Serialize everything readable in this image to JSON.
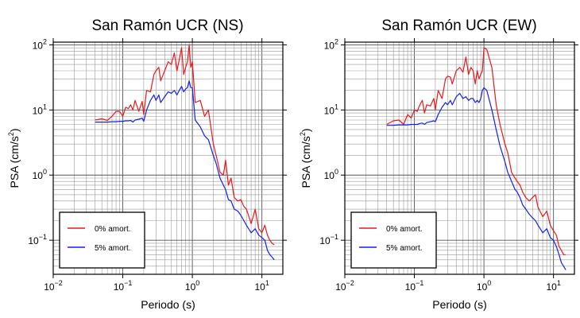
{
  "chart_data": [
    {
      "type": "line",
      "title": "San Ramón UCR (NS)",
      "xlabel": "Periodo (s)",
      "ylabel": {
        "prefix": "PSA (cm/s",
        "sup": "2",
        "suffix": ")"
      },
      "xscale": "log",
      "yscale": "log",
      "xlim": [
        0.01,
        20
      ],
      "ylim": [
        0.03,
        110
      ],
      "grid": true,
      "legend_position": "bottom-left",
      "x_ticks": [
        {
          "base": "10",
          "exp": "−2",
          "value": 0.01
        },
        {
          "base": "10",
          "exp": "−1",
          "value": 0.1
        },
        {
          "base": "10",
          "exp": "0",
          "value": 1
        },
        {
          "base": "10",
          "exp": "1",
          "value": 10
        }
      ],
      "y_ticks": [
        {
          "base": "10",
          "exp": "−1",
          "value": 0.1
        },
        {
          "base": "10",
          "exp": "0",
          "value": 1
        },
        {
          "base": "10",
          "exp": "1",
          "value": 10
        },
        {
          "base": "10",
          "exp": "2",
          "value": 100
        }
      ],
      "series": [
        {
          "name": "0% amort.",
          "color": "#e8191c",
          "x": [
            0.04,
            0.05,
            0.06,
            0.07,
            0.08,
            0.09,
            0.1,
            0.11,
            0.12,
            0.13,
            0.14,
            0.15,
            0.17,
            0.19,
            0.2,
            0.22,
            0.25,
            0.28,
            0.3,
            0.33,
            0.35,
            0.4,
            0.45,
            0.5,
            0.55,
            0.6,
            0.65,
            0.7,
            0.75,
            0.8,
            0.85,
            0.9,
            0.95,
            1.0,
            1.1,
            1.3,
            1.5,
            1.7,
            2.0,
            2.2,
            2.5,
            2.8,
            3.0,
            3.3,
            3.6,
            4.0,
            4.5,
            5.0,
            5.5,
            6.0,
            7.0,
            8.0,
            9.0,
            10.0,
            11.0,
            12.0,
            13.0,
            14.0,
            15.0
          ],
          "y": [
            7.0,
            7.3,
            6.9,
            8.0,
            9.5,
            9.5,
            8.0,
            11.0,
            10.5,
            12.0,
            10.0,
            14.0,
            9.5,
            13.5,
            8.5,
            20.0,
            19.0,
            35.0,
            40.0,
            45.0,
            28.0,
            40.0,
            55.0,
            50.0,
            75.0,
            40.0,
            60.0,
            90.0,
            35.0,
            45.0,
            55.0,
            100.0,
            45.0,
            55.0,
            13.0,
            14.0,
            8.0,
            10.0,
            3.0,
            2.0,
            1.1,
            1.0,
            1.7,
            0.7,
            0.9,
            0.45,
            0.4,
            0.42,
            0.33,
            0.3,
            0.18,
            0.3,
            0.15,
            0.13,
            0.17,
            0.12,
            0.1,
            0.09,
            0.085
          ]
        },
        {
          "name": "5% amort.",
          "color": "#1520e6",
          "x": [
            0.04,
            0.05,
            0.06,
            0.07,
            0.08,
            0.09,
            0.1,
            0.11,
            0.12,
            0.13,
            0.14,
            0.15,
            0.17,
            0.19,
            0.2,
            0.22,
            0.25,
            0.28,
            0.3,
            0.33,
            0.35,
            0.4,
            0.45,
            0.5,
            0.55,
            0.6,
            0.65,
            0.7,
            0.75,
            0.8,
            0.85,
            0.9,
            0.95,
            1.0,
            1.1,
            1.3,
            1.5,
            1.7,
            2.0,
            2.2,
            2.5,
            2.8,
            3.0,
            3.3,
            3.6,
            4.0,
            4.5,
            5.0,
            5.5,
            6.0,
            7.0,
            8.0,
            9.0,
            10.0,
            11.0,
            12.0,
            13.0,
            14.0,
            15.0
          ],
          "y": [
            6.5,
            6.5,
            6.5,
            6.6,
            6.6,
            6.7,
            6.7,
            6.8,
            6.8,
            6.9,
            6.5,
            7.0,
            7.2,
            7.5,
            6.7,
            10.0,
            14.0,
            17.0,
            14.0,
            17.0,
            13.0,
            16.0,
            19.0,
            18.0,
            20.0,
            17.0,
            20.0,
            23.0,
            19.0,
            21.0,
            22.0,
            28.0,
            22.0,
            22.0,
            7.0,
            5.5,
            4.0,
            3.5,
            2.0,
            1.5,
            0.9,
            0.7,
            0.6,
            0.42,
            0.4,
            0.3,
            0.28,
            0.24,
            0.2,
            0.17,
            0.13,
            0.15,
            0.12,
            0.11,
            0.1,
            0.07,
            0.06,
            0.055,
            0.05
          ]
        }
      ]
    },
    {
      "type": "line",
      "title": "San Ramón UCR (EW)",
      "xlabel": "Periodo (s)",
      "ylabel": {
        "prefix": "PSA (cm/s",
        "sup": "2",
        "suffix": ")"
      },
      "xscale": "log",
      "yscale": "log",
      "xlim": [
        0.01,
        20
      ],
      "ylim": [
        0.03,
        110
      ],
      "grid": true,
      "legend_position": "bottom-left",
      "x_ticks": [
        {
          "base": "10",
          "exp": "−2",
          "value": 0.01
        },
        {
          "base": "10",
          "exp": "−1",
          "value": 0.1
        },
        {
          "base": "10",
          "exp": "0",
          "value": 1
        },
        {
          "base": "10",
          "exp": "1",
          "value": 10
        }
      ],
      "y_ticks": [
        {
          "base": "10",
          "exp": "−1",
          "value": 0.1
        },
        {
          "base": "10",
          "exp": "0",
          "value": 1
        },
        {
          "base": "10",
          "exp": "1",
          "value": 10
        },
        {
          "base": "10",
          "exp": "2",
          "value": 100
        }
      ],
      "series": [
        {
          "name": "0% amort.",
          "color": "#e8191c",
          "x": [
            0.04,
            0.05,
            0.06,
            0.07,
            0.08,
            0.09,
            0.1,
            0.11,
            0.12,
            0.13,
            0.14,
            0.15,
            0.17,
            0.19,
            0.2,
            0.22,
            0.25,
            0.28,
            0.3,
            0.33,
            0.35,
            0.4,
            0.45,
            0.5,
            0.55,
            0.6,
            0.65,
            0.7,
            0.75,
            0.8,
            0.85,
            0.9,
            0.95,
            1.0,
            1.1,
            1.3,
            1.5,
            1.7,
            2.0,
            2.2,
            2.5,
            2.8,
            3.0,
            3.3,
            3.6,
            4.0,
            4.5,
            5.0,
            5.5,
            6.0,
            7.0,
            8.0,
            9.0,
            10.0,
            11.0,
            12.0,
            13.0,
            14.0,
            15.0
          ],
          "y": [
            6.0,
            6.8,
            7.0,
            6.0,
            8.5,
            7.5,
            10.0,
            9.5,
            12.0,
            14.0,
            9.0,
            12.0,
            11.5,
            15.0,
            10.0,
            20.0,
            15.0,
            30.0,
            33.0,
            32.0,
            25.0,
            40.0,
            45.0,
            38.0,
            65.0,
            35.0,
            45.0,
            40.0,
            25.0,
            40.0,
            30.0,
            35.0,
            40.0,
            90.0,
            85.0,
            45.0,
            12.0,
            6.0,
            3.0,
            2.2,
            1.1,
            0.9,
            0.8,
            0.7,
            0.55,
            0.45,
            0.4,
            0.45,
            0.5,
            0.32,
            0.23,
            0.28,
            0.17,
            0.14,
            0.12,
            0.08,
            0.07,
            0.06,
            0.06
          ]
        },
        {
          "name": "5% amort.",
          "color": "#1520e6",
          "x": [
            0.04,
            0.05,
            0.06,
            0.07,
            0.08,
            0.09,
            0.1,
            0.11,
            0.12,
            0.13,
            0.14,
            0.15,
            0.17,
            0.19,
            0.2,
            0.22,
            0.25,
            0.28,
            0.3,
            0.33,
            0.35,
            0.4,
            0.45,
            0.5,
            0.55,
            0.6,
            0.65,
            0.7,
            0.75,
            0.8,
            0.85,
            0.9,
            0.95,
            1.0,
            1.1,
            1.3,
            1.5,
            1.7,
            2.0,
            2.2,
            2.5,
            2.8,
            3.0,
            3.3,
            3.6,
            4.0,
            4.5,
            5.0,
            5.5,
            6.0,
            7.0,
            8.0,
            9.0,
            10.0,
            11.0,
            12.0,
            13.0,
            14.0,
            15.0
          ],
          "y": [
            5.8,
            5.8,
            5.9,
            5.9,
            5.9,
            6.0,
            6.0,
            6.0,
            6.2,
            6.3,
            6.0,
            6.4,
            6.6,
            6.8,
            6.6,
            8.5,
            11.0,
            13.0,
            12.0,
            14.0,
            12.0,
            16.0,
            18.0,
            15.0,
            16.0,
            14.0,
            15.0,
            15.0,
            13.0,
            14.0,
            13.0,
            15.0,
            20.0,
            22.0,
            20.0,
            10.0,
            5.0,
            2.8,
            1.6,
            1.1,
            0.8,
            0.6,
            0.55,
            0.45,
            0.35,
            0.3,
            0.25,
            0.22,
            0.2,
            0.17,
            0.13,
            0.15,
            0.11,
            0.1,
            0.08,
            0.06,
            0.045,
            0.04,
            0.035
          ]
        }
      ]
    }
  ]
}
